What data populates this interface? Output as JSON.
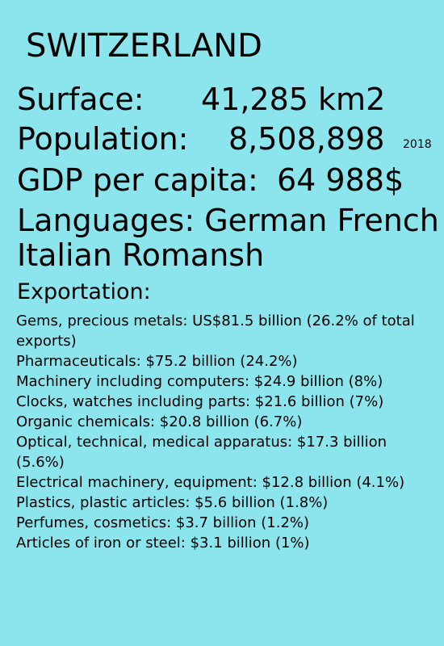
{
  "country": "SWITZERLAND",
  "surface": {
    "label": "Surface:",
    "value": "41,285 km2"
  },
  "population": {
    "label": "Population:",
    "value": "8,508,898",
    "year": "2018"
  },
  "gdp_per_capita": {
    "label": "GDP per capita:",
    "value": "64 988$"
  },
  "languages": {
    "line1": "Languages: German French",
    "line2": "Italian Romansh"
  },
  "exportation": {
    "heading": "Exportation:",
    "items": [
      "Gems, precious metals: US$81.5 billion (26.2% of total exports)",
      "Pharmaceuticals: $75.2 billion (24.2%)",
      "Machinery including computers: $24.9 billion (8%)",
      "Clocks, watches including parts: $21.6 billion (7%)",
      "Organic chemicals: $20.8 billion (6.7%)",
      "Optical, technical, medical apparatus: $17.3 billion (5.6%)",
      "Electrical machinery, equipment: $12.8 billion (4.1%)",
      "Plastics, plastic articles: $5.6 billion (1.8%)",
      "Perfumes, cosmetics: $3.7 billion (1.2%)",
      "Articles of iron or steel: $3.1 billion (1%)"
    ]
  },
  "colors": {
    "background": "#8ce4ec",
    "text": "#000000"
  }
}
